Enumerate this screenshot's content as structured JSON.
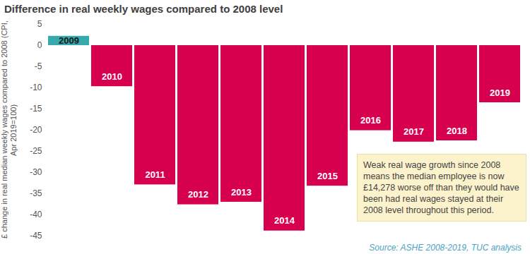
{
  "chart_data": {
    "type": "bar",
    "title": "Difference in real weekly wages compared to 2008 level",
    "ylabel": "£ change in real median weekly wages compared to 2008 (CPI, Apr 2019=100)",
    "categories": [
      "2009",
      "2010",
      "2011",
      "2012",
      "2013",
      "2014",
      "2015",
      "2016",
      "2017",
      "2018",
      "2019"
    ],
    "values": [
      2.2,
      -9.7,
      -32.9,
      -37.6,
      -37.0,
      -43.8,
      -33.2,
      -20.1,
      -22.8,
      -22.5,
      -13.5
    ],
    "colors": [
      "#36a9ad",
      "#d6004f",
      "#d6004f",
      "#d6004f",
      "#d6004f",
      "#d6004f",
      "#d6004f",
      "#d6004f",
      "#d6004f",
      "#d6004f",
      "#d6004f"
    ],
    "ylim": [
      -45,
      5
    ],
    "yticks": [
      5,
      0,
      -5,
      -10,
      -15,
      -20,
      -25,
      -30,
      -35,
      -40,
      -45
    ],
    "grid": false,
    "tick_labels": "y",
    "annotation": "Weak real wage growth since 2008 means the median employee is now £14,278 worse off than they would have been had real wages stayed at their 2008 level throughout this period.",
    "source": "Source: ASHE 2008-2019, TUC analysis"
  }
}
